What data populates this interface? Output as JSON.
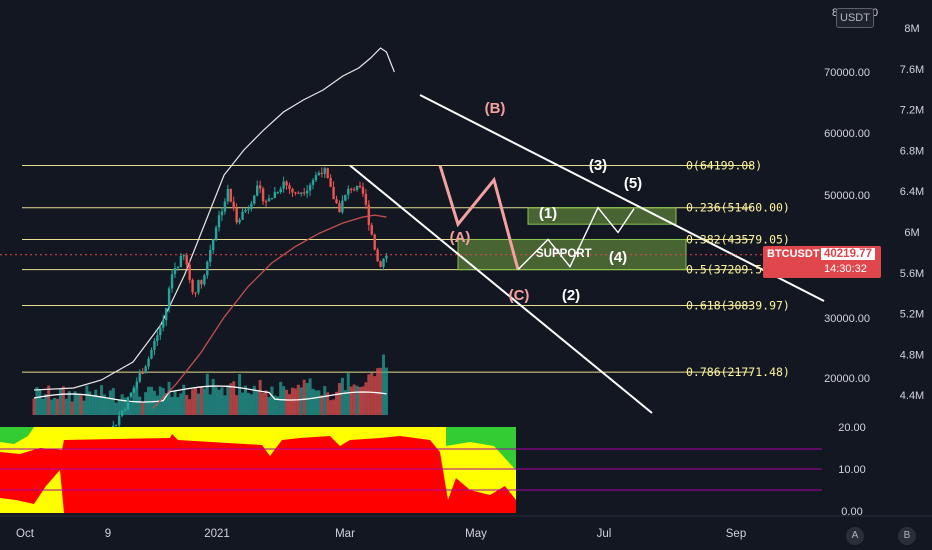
{
  "chart_data": {
    "type": "candlestick",
    "symbol": "BTCUSDT",
    "price_currency": "USDT",
    "last_price": "40219.77",
    "countdown": "14:30:32",
    "x_ticks": [
      "Oct",
      "9",
      "2021",
      "Mar",
      "May",
      "Jul",
      "Sep"
    ],
    "price_ticks": [
      "70000.00",
      "60000.00",
      "50000.00",
      "30000.00",
      "20000.00"
    ],
    "secondary_ticks": [
      "8M",
      "7.6M",
      "7.2M",
      "6.8M",
      "6.4M",
      "6M",
      "5.6M",
      "5.2M",
      "4.8M",
      "4.4M"
    ],
    "oscillator_ticks": [
      "20.00",
      "10.00",
      "0.00"
    ],
    "top_partial_ticks": [
      "8",
      "0"
    ],
    "fib_levels": [
      {
        "ratio": "0",
        "price": "64199.08",
        "label": "0(64199.08)"
      },
      {
        "ratio": "0.236",
        "price": "51460.00",
        "label": "0.236(51460.00)"
      },
      {
        "ratio": "0.382",
        "price": "43579.05",
        "label": "0.382(43579.05)"
      },
      {
        "ratio": "0.5",
        "price": "37209.51",
        "label": "0.5(37209.51)"
      },
      {
        "ratio": "0.618",
        "price": "30839.97",
        "label": "0.618(30839.97)"
      },
      {
        "ratio": "0.786",
        "price": "21771.48",
        "label": "0.786(21771.48)"
      }
    ],
    "wave_labels": {
      "correction": [
        "(A)",
        "(B)",
        "(C)"
      ],
      "impulse": [
        "(1)",
        "(2)",
        "(3)",
        "(4)",
        "(5)"
      ]
    },
    "support_label": "SUPPORT",
    "colors": {
      "background": "#131722",
      "up": "#26a69a",
      "down": "#ef5350",
      "fib": "#fff59d",
      "zone": "#8bc34a",
      "abc": "#f4a0a0",
      "trend": "#ffffff",
      "secondary_line": "#e8e8e8",
      "ma": "#c0504d",
      "osc_red": "#ff0000",
      "osc_yellow": "#ffff00",
      "osc_green": "#33cc33",
      "tag": "#e0474c"
    }
  },
  "axis_buttons": {
    "auto": "A",
    "bars": "B"
  }
}
